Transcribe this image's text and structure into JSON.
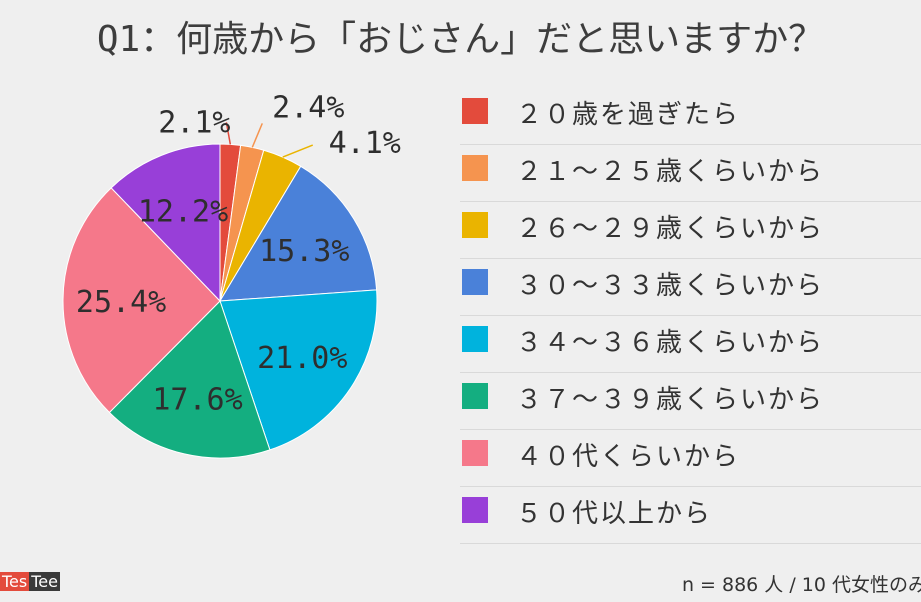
{
  "chart_data": {
    "type": "pie",
    "title": "Q1：何歳から「おじさん」だと思いますか？",
    "categories": [
      "２０歳を過ぎたら",
      "２１〜２５歳くらいから",
      "２６〜２９歳くらいから",
      "３０〜３３歳くらいから",
      "３４〜３６歳くらいから",
      "３７〜３９歳くらいから",
      "４０代くらいから",
      "５０代以上から"
    ],
    "values": [
      2.1,
      2.4,
      4.1,
      15.3,
      21.0,
      17.6,
      25.4,
      12.2
    ],
    "labels": [
      "2.1%",
      "2.4%",
      "4.1%",
      "15.3%",
      "21.0%",
      "17.6%",
      "25.4%",
      "12.2%"
    ],
    "colors": [
      "#e34b3c",
      "#f5944f",
      "#eab400",
      "#4a81d9",
      "#00b3dd",
      "#14ae80",
      "#f5788a",
      "#983fd8"
    ],
    "legend_position": "right"
  },
  "brand": {
    "part1": "Tes",
    "part2": "Tee"
  },
  "footnote": "n = 886 人 / 10 代女性のみ"
}
